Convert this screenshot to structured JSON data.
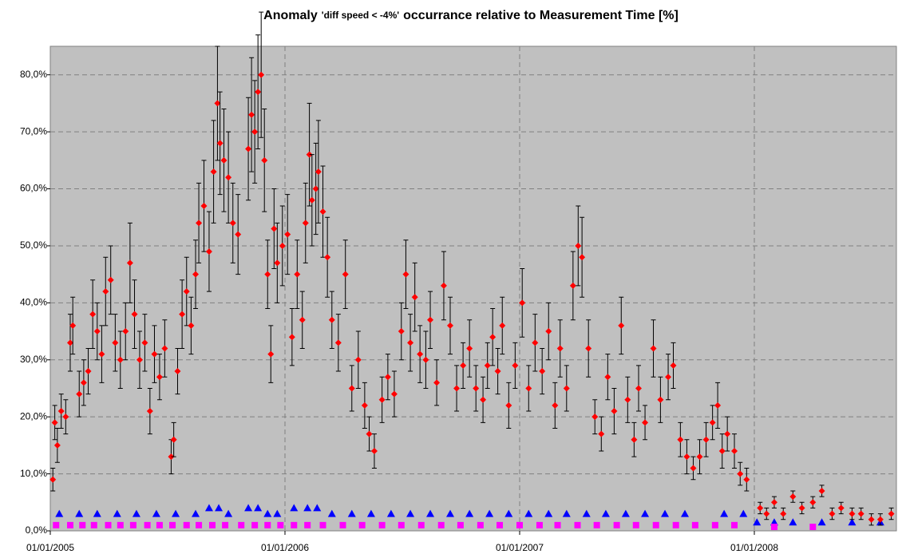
{
  "chart_data": {
    "type": "scatter",
    "title_parts": [
      "Anomaly",
      "'diff speed < -4%'",
      "occurrance relative to Measurement Time [%]"
    ],
    "xlim": [
      "2005-01-01",
      "2008-08-09"
    ],
    "xticks": [
      {
        "value": "2005-01-01",
        "label": "01/01/2005"
      },
      {
        "value": "2006-01-01",
        "label": "01/01/2006"
      },
      {
        "value": "2007-01-01",
        "label": "01/01/2007"
      },
      {
        "value": "2008-01-01",
        "label": "01/01/2008"
      }
    ],
    "ylim": [
      0,
      85
    ],
    "yticks": [
      {
        "value": 0,
        "label": "0,0%"
      },
      {
        "value": 10,
        "label": "10,0%"
      },
      {
        "value": 20,
        "label": "20,0%"
      },
      {
        "value": 30,
        "label": "30,0%"
      },
      {
        "value": 40,
        "label": "40,0%"
      },
      {
        "value": 50,
        "label": "50,0%"
      },
      {
        "value": 60,
        "label": "60,0%"
      },
      {
        "value": 70,
        "label": "70,0%"
      },
      {
        "value": 80,
        "label": "80,0%"
      }
    ],
    "grid": true,
    "series": [
      {
        "color": "#0000ff",
        "marker": "triangle",
        "x": [
          "2005-01-15",
          "2005-02-15",
          "2005-03-15",
          "2005-04-15",
          "2005-05-15",
          "2005-06-15",
          "2005-07-15",
          "2005-08-15",
          "2005-09-05",
          "2005-09-20",
          "2005-10-05",
          "2005-11-05",
          "2005-11-20",
          "2005-12-05",
          "2005-12-20",
          "2006-01-15",
          "2006-02-05",
          "2006-02-20",
          "2006-03-15",
          "2006-04-15",
          "2006-05-15",
          "2006-06-15",
          "2006-07-15",
          "2006-08-15",
          "2006-09-15",
          "2006-10-15",
          "2006-11-15",
          "2006-12-15",
          "2007-01-15",
          "2007-02-15",
          "2007-03-15",
          "2007-04-15",
          "2007-05-15",
          "2007-06-15",
          "2007-07-15",
          "2007-08-15",
          "2007-09-15",
          "2007-11-15",
          "2007-12-15",
          "2008-01-05",
          "2008-02-01",
          "2008-03-01",
          "2008-04-15",
          "2008-06-01",
          "2008-07-15"
        ],
        "values": [
          3,
          3,
          3,
          3,
          3,
          3,
          3,
          3,
          4,
          4,
          3,
          4,
          4,
          3,
          3,
          4,
          4,
          4,
          3,
          3,
          3,
          3,
          3,
          3,
          3,
          3,
          3,
          3,
          3,
          3,
          3,
          3,
          3,
          3,
          3,
          3,
          3,
          3,
          3,
          1.5,
          1.5,
          1.5,
          1.5,
          1.5,
          1.5
        ]
      },
      {
        "color": "#ff00ff",
        "marker": "square",
        "x": [
          "2005-01-10",
          "2005-02-01",
          "2005-02-20",
          "2005-03-10",
          "2005-04-01",
          "2005-04-20",
          "2005-05-10",
          "2005-06-01",
          "2005-06-20",
          "2005-07-10",
          "2005-08-01",
          "2005-08-20",
          "2005-09-10",
          "2005-09-30",
          "2005-10-25",
          "2005-11-15",
          "2005-12-05",
          "2005-12-25",
          "2006-01-15",
          "2006-02-05",
          "2006-03-01",
          "2006-04-01",
          "2006-05-01",
          "2006-06-01",
          "2006-07-01",
          "2006-08-01",
          "2006-09-01",
          "2006-10-01",
          "2006-11-01",
          "2006-12-01",
          "2007-01-01",
          "2007-02-01",
          "2007-03-01",
          "2007-04-01",
          "2007-05-01",
          "2007-06-01",
          "2007-07-01",
          "2007-08-01",
          "2007-09-01",
          "2007-10-01",
          "2007-11-01",
          "2007-12-01",
          "2008-02-01",
          "2008-04-01"
        ],
        "values": [
          1,
          1,
          1,
          1,
          1,
          1,
          1,
          1,
          1,
          1,
          1,
          1,
          1,
          1,
          1,
          1,
          1,
          1,
          1,
          1,
          1,
          1,
          1,
          1,
          1,
          1,
          1,
          1,
          1,
          1,
          1,
          1,
          1,
          1,
          1,
          1,
          1,
          1,
          1,
          1,
          1,
          1,
          0.7,
          0.7
        ]
      },
      {
        "color": "#ff0000",
        "marker": "diamond",
        "x": [
          "2005-01-05",
          "2005-01-08",
          "2005-01-12",
          "2005-01-18",
          "2005-01-25",
          "2005-02-01",
          "2005-02-05",
          "2005-02-15",
          "2005-02-22",
          "2005-03-01",
          "2005-03-08",
          "2005-03-15",
          "2005-03-22",
          "2005-03-28",
          "2005-04-05",
          "2005-04-12",
          "2005-04-20",
          "2005-04-28",
          "2005-05-05",
          "2005-05-12",
          "2005-05-20",
          "2005-05-28",
          "2005-06-05",
          "2005-06-12",
          "2005-06-20",
          "2005-06-28",
          "2005-07-08",
          "2005-07-12",
          "2005-07-18",
          "2005-07-25",
          "2005-08-01",
          "2005-08-08",
          "2005-08-15",
          "2005-08-20",
          "2005-08-28",
          "2005-09-05",
          "2005-09-12",
          "2005-09-18",
          "2005-09-22",
          "2005-09-28",
          "2005-10-05",
          "2005-10-12",
          "2005-10-20",
          "2005-11-05",
          "2005-11-10",
          "2005-11-15",
          "2005-11-20",
          "2005-11-25",
          "2005-11-30",
          "2005-12-05",
          "2005-12-10",
          "2005-12-15",
          "2005-12-20",
          "2005-12-28",
          "2006-01-05",
          "2006-01-12",
          "2006-01-20",
          "2006-01-28",
          "2006-02-02",
          "2006-02-08",
          "2006-02-12",
          "2006-02-18",
          "2006-02-22",
          "2006-03-01",
          "2006-03-08",
          "2006-03-15",
          "2006-03-25",
          "2006-04-05",
          "2006-04-15",
          "2006-04-25",
          "2006-05-05",
          "2006-05-12",
          "2006-05-20",
          "2006-06-01",
          "2006-06-10",
          "2006-06-20",
          "2006-07-01",
          "2006-07-08",
          "2006-07-15",
          "2006-07-22",
          "2006-07-30",
          "2006-08-08",
          "2006-08-15",
          "2006-08-25",
          "2006-09-05",
          "2006-09-15",
          "2006-09-25",
          "2006-10-05",
          "2006-10-15",
          "2006-10-25",
          "2006-11-05",
          "2006-11-12",
          "2006-11-20",
          "2006-11-28",
          "2006-12-05",
          "2006-12-15",
          "2006-12-25",
          "2007-01-05",
          "2007-01-15",
          "2007-01-25",
          "2007-02-05",
          "2007-02-15",
          "2007-02-25",
          "2007-03-05",
          "2007-03-15",
          "2007-03-25",
          "2007-04-02",
          "2007-04-08",
          "2007-04-18",
          "2007-04-28",
          "2007-05-08",
          "2007-05-18",
          "2007-05-28",
          "2007-06-08",
          "2007-06-18",
          "2007-06-28",
          "2007-07-05",
          "2007-07-15",
          "2007-07-28",
          "2007-08-08",
          "2007-08-20",
          "2007-08-28",
          "2007-09-08",
          "2007-09-18",
          "2007-09-28",
          "2007-10-08",
          "2007-10-18",
          "2007-10-28",
          "2007-11-05",
          "2007-11-12",
          "2007-11-20",
          "2007-12-01",
          "2007-12-10",
          "2007-12-20",
          "2008-01-10",
          "2008-01-20",
          "2008-02-01",
          "2008-02-15",
          "2008-03-01",
          "2008-03-15",
          "2008-04-01",
          "2008-04-15",
          "2008-05-01",
          "2008-05-15",
          "2008-06-01",
          "2008-06-15",
          "2008-07-01",
          "2008-07-15",
          "2008-08-01"
        ],
        "values": [
          9,
          19,
          15,
          21,
          20,
          33,
          36,
          24,
          26,
          28,
          38,
          35,
          31,
          42,
          44,
          33,
          30,
          35,
          47,
          38,
          30,
          33,
          21,
          31,
          27,
          32,
          13,
          16,
          28,
          38,
          42,
          36,
          45,
          54,
          57,
          49,
          63,
          75,
          68,
          65,
          62,
          54,
          52,
          67,
          73,
          70,
          77,
          80,
          65,
          45,
          31,
          53,
          47,
          50,
          52,
          34,
          45,
          37,
          54,
          66,
          58,
          60,
          63,
          56,
          48,
          37,
          33,
          45,
          25,
          30,
          22,
          17,
          14,
          23,
          27,
          24,
          35,
          45,
          33,
          41,
          31,
          30,
          37,
          26,
          43,
          36,
          25,
          29,
          32,
          25,
          23,
          29,
          34,
          28,
          36,
          22,
          29,
          40,
          25,
          33,
          28,
          35,
          22,
          32,
          25,
          43,
          50,
          48,
          32,
          20,
          17,
          27,
          21,
          36,
          23,
          16,
          25,
          19,
          32,
          23,
          27,
          29,
          16,
          13,
          11,
          13,
          16,
          19,
          22,
          14,
          17,
          14,
          10,
          9,
          4,
          3,
          5,
          3,
          6,
          4,
          5,
          7,
          3,
          4,
          3,
          3,
          2,
          2,
          3
        ],
        "errors": [
          2,
          3,
          3,
          3,
          3,
          5,
          5,
          4,
          4,
          4,
          6,
          5,
          5,
          6,
          6,
          5,
          5,
          5,
          7,
          6,
          5,
          5,
          4,
          5,
          4,
          5,
          3,
          3,
          4,
          6,
          6,
          5,
          6,
          7,
          8,
          7,
          9,
          10,
          9,
          9,
          8,
          7,
          7,
          9,
          10,
          9,
          10,
          11,
          9,
          6,
          5,
          7,
          7,
          7,
          7,
          5,
          6,
          5,
          7,
          9,
          8,
          8,
          9,
          8,
          7,
          5,
          5,
          6,
          4,
          5,
          4,
          3,
          3,
          4,
          4,
          4,
          5,
          6,
          5,
          6,
          5,
          5,
          5,
          4,
          6,
          5,
          4,
          4,
          5,
          4,
          4,
          4,
          5,
          4,
          5,
          4,
          4,
          6,
          4,
          5,
          4,
          5,
          4,
          5,
          4,
          6,
          7,
          7,
          5,
          3,
          3,
          4,
          4,
          5,
          4,
          3,
          4,
          3,
          5,
          4,
          4,
          4,
          3,
          3,
          2,
          3,
          3,
          3,
          4,
          3,
          3,
          3,
          2,
          2,
          1,
          1,
          1,
          1,
          1,
          1,
          1,
          1,
          1,
          1,
          1,
          1,
          1,
          1,
          1
        ]
      }
    ]
  }
}
